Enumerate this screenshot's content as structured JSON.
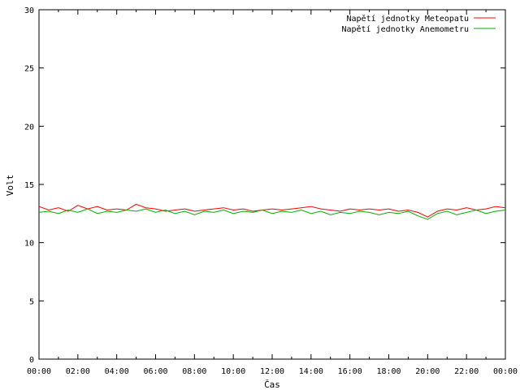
{
  "chart_data": {
    "type": "line",
    "title": "",
    "xlabel": "Čas",
    "ylabel": "Volt",
    "ylim": [
      0,
      30
    ],
    "yticks": [
      0,
      5,
      10,
      15,
      20,
      25,
      30
    ],
    "xlim_hours": [
      0,
      24
    ],
    "xticks": [
      "00:00",
      "02:00",
      "04:00",
      "06:00",
      "08:00",
      "10:00",
      "12:00",
      "14:00",
      "16:00",
      "18:00",
      "20:00",
      "22:00",
      "00:00"
    ],
    "grid": false,
    "legend_position": "top-right",
    "series": [
      {
        "name": "Napětí jednotky Meteopatu",
        "color": "#ff0000",
        "x_hours": [
          0.0,
          0.5,
          1.0,
          1.5,
          2.0,
          2.5,
          3.0,
          3.5,
          4.0,
          4.5,
          5.0,
          5.5,
          6.0,
          6.5,
          7.0,
          7.5,
          8.0,
          8.5,
          9.0,
          9.5,
          10.0,
          10.5,
          11.0,
          11.5,
          12.0,
          12.5,
          13.0,
          13.5,
          14.0,
          14.5,
          15.0,
          15.5,
          16.0,
          16.5,
          17.0,
          17.5,
          18.0,
          18.5,
          19.0,
          19.5,
          20.0,
          20.5,
          21.0,
          21.5,
          22.0,
          22.5,
          23.0,
          23.5,
          24.0
        ],
        "values": [
          13.1,
          12.8,
          13.0,
          12.7,
          13.2,
          12.9,
          13.1,
          12.8,
          12.9,
          12.8,
          13.3,
          13.0,
          12.9,
          12.7,
          12.8,
          12.9,
          12.7,
          12.8,
          12.9,
          13.0,
          12.8,
          12.9,
          12.7,
          12.8,
          12.9,
          12.8,
          12.9,
          13.0,
          13.1,
          12.9,
          12.8,
          12.7,
          12.9,
          12.8,
          12.9,
          12.8,
          12.9,
          12.7,
          12.8,
          12.6,
          12.2,
          12.7,
          12.9,
          12.8,
          13.0,
          12.8,
          12.9,
          13.1,
          13.0
        ]
      },
      {
        "name": "Napětí jednotky Anemometru",
        "color": "#00b000",
        "x_hours": [
          0.0,
          0.5,
          1.0,
          1.5,
          2.0,
          2.5,
          3.0,
          3.5,
          4.0,
          4.5,
          5.0,
          5.5,
          6.0,
          6.5,
          7.0,
          7.5,
          8.0,
          8.5,
          9.0,
          9.5,
          10.0,
          10.5,
          11.0,
          11.5,
          12.0,
          12.5,
          13.0,
          13.5,
          14.0,
          14.5,
          15.0,
          15.5,
          16.0,
          16.5,
          17.0,
          17.5,
          18.0,
          18.5,
          19.0,
          19.5,
          20.0,
          20.5,
          21.0,
          21.5,
          22.0,
          22.5,
          23.0,
          23.5,
          24.0
        ],
        "values": [
          12.6,
          12.7,
          12.5,
          12.8,
          12.6,
          12.9,
          12.5,
          12.7,
          12.6,
          12.8,
          12.7,
          12.9,
          12.6,
          12.8,
          12.5,
          12.7,
          12.4,
          12.7,
          12.6,
          12.8,
          12.5,
          12.7,
          12.6,
          12.8,
          12.5,
          12.7,
          12.6,
          12.8,
          12.5,
          12.7,
          12.4,
          12.6,
          12.5,
          12.7,
          12.6,
          12.4,
          12.6,
          12.5,
          12.7,
          12.3,
          12.0,
          12.5,
          12.7,
          12.4,
          12.6,
          12.8,
          12.5,
          12.7,
          12.8
        ]
      }
    ]
  }
}
